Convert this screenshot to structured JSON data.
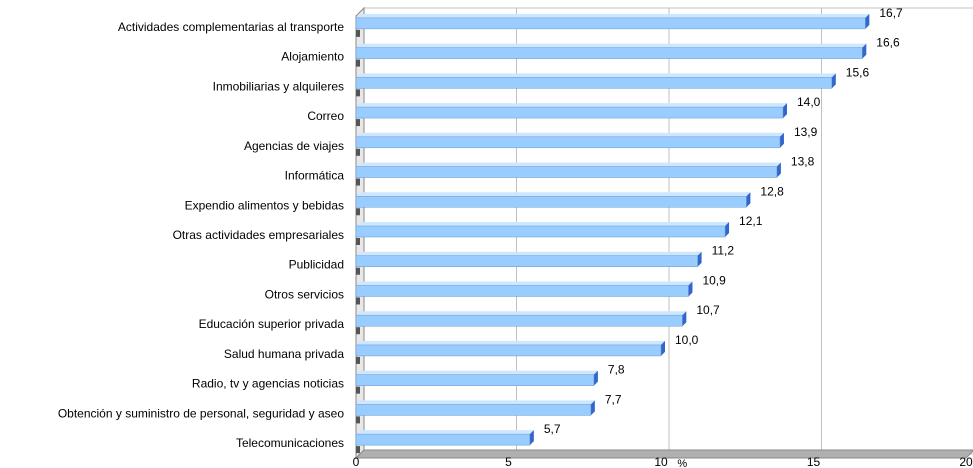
{
  "chart_data": {
    "type": "bar",
    "orientation": "horizontal",
    "categories": [
      "Actividades complementarias al transporte",
      "Alojamiento",
      "Inmobiliarias y alquileres",
      "Correo",
      "Agencias de viajes",
      "Informática",
      "Expendio alimentos y bebidas",
      "Otras actividades empresariales",
      "Publicidad",
      "Otros servicios",
      "Educación superior privada",
      "Salud humana privada",
      "Radio, tv y agencias noticias",
      "Obtención y suministro de personal, seguridad y aseo",
      "Telecomunicaciones"
    ],
    "values": [
      16.7,
      16.6,
      15.6,
      14.0,
      13.9,
      13.8,
      12.8,
      12.1,
      11.2,
      10.9,
      10.7,
      10.0,
      7.8,
      7.7,
      5.7
    ],
    "value_labels": [
      "16,7",
      "16,6",
      "15,6",
      "14,0",
      "13,9",
      "13,8",
      "12,8",
      "12,1",
      "11,2",
      "10,9",
      "10,7",
      "10,0",
      "7,8",
      "7,7",
      "5,7"
    ],
    "secondary_values": [
      0,
      0,
      0,
      0,
      0,
      0,
      0,
      0,
      0,
      0,
      0,
      0,
      0,
      0,
      0
    ],
    "xlabel": "%",
    "xlim": [
      0,
      20
    ],
    "xticks": [
      "0",
      "5",
      "10",
      "15",
      "20"
    ],
    "grid": true,
    "style": "3d",
    "colors": {
      "bar": "#99ccff",
      "bar_edge": "#3366cc",
      "secondary_bar": "#555555",
      "grid": "#c0c0c0",
      "floor": "#b0b0b0"
    }
  }
}
